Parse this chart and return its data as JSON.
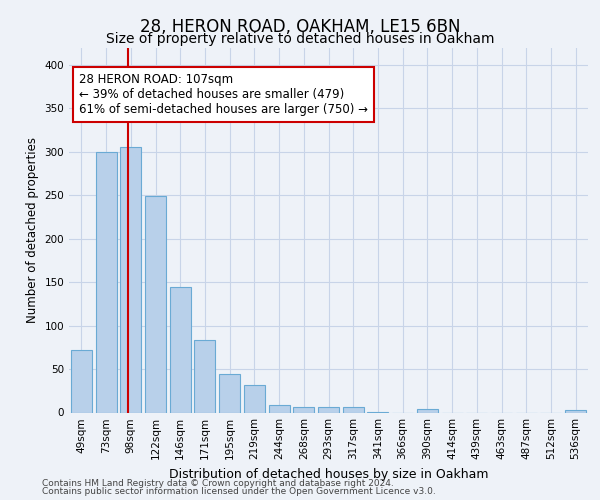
{
  "title1": "28, HERON ROAD, OAKHAM, LE15 6BN",
  "title2": "Size of property relative to detached houses in Oakham",
  "xlabel": "Distribution of detached houses by size in Oakham",
  "ylabel": "Number of detached properties",
  "footer1": "Contains HM Land Registry data © Crown copyright and database right 2024.",
  "footer2": "Contains public sector information licensed under the Open Government Licence v3.0.",
  "categories": [
    "49sqm",
    "73sqm",
    "98sqm",
    "122sqm",
    "146sqm",
    "171sqm",
    "195sqm",
    "219sqm",
    "244sqm",
    "268sqm",
    "293sqm",
    "317sqm",
    "341sqm",
    "366sqm",
    "390sqm",
    "414sqm",
    "439sqm",
    "463sqm",
    "487sqm",
    "512sqm",
    "536sqm"
  ],
  "values": [
    72,
    300,
    305,
    249,
    144,
    83,
    44,
    32,
    9,
    6,
    6,
    6,
    1,
    0,
    4,
    0,
    0,
    0,
    0,
    0,
    3
  ],
  "bar_color": "#b8d0ea",
  "bar_edge_color": "#6aaad4",
  "grid_color": "#c8d4e8",
  "annotation_line1": "28 HERON ROAD: 107sqm",
  "annotation_line2": "← 39% of detached houses are smaller (479)",
  "annotation_line3": "61% of semi-detached houses are larger (750) →",
  "vline_color": "#cc0000",
  "vline_pos": 1.87,
  "ylim": [
    0,
    420
  ],
  "yticks": [
    0,
    50,
    100,
    150,
    200,
    250,
    300,
    350,
    400
  ],
  "bg_color": "#eef2f8",
  "plot_bg_color": "#eef2f8",
  "title1_fontsize": 12,
  "title2_fontsize": 10,
  "annotation_fontsize": 8.5,
  "ylabel_fontsize": 8.5,
  "xlabel_fontsize": 9,
  "footer_fontsize": 6.5,
  "tick_fontsize": 7.5
}
